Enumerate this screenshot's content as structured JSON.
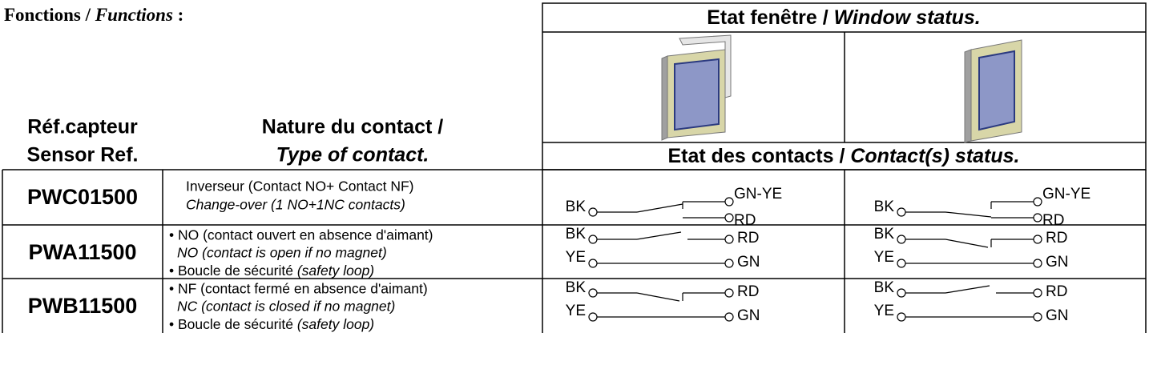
{
  "header": {
    "title": {
      "fr": "Fonctions /",
      "en": "Functions",
      "suffix": ":"
    }
  },
  "columns": {
    "ref": [
      "Réf.capteur",
      "Sensor Ref."
    ],
    "type": [
      "Nature du contact /",
      "Type of contact."
    ],
    "window_status": {
      "fr": "Etat fenêtre /",
      "en": "Window status."
    },
    "contact_status": {
      "fr": "Etat des contacts /",
      "en": "Contact(s) status."
    }
  },
  "rows": [
    {
      "ref": "PWC01500",
      "description": [
        "Inverseur (Contact NO+ Contact NF)",
        "Change-over (1 NO+1NC contacts)"
      ],
      "open": [
        "BK",
        "GN-YE",
        "RD"
      ],
      "closed": [
        "BK",
        "GN-YE",
        "RD"
      ]
    },
    {
      "ref": "PWA11500",
      "description": [
        "• NO (contact ouvert en absence d'aimant)",
        "NO (contact is open if no magnet)",
        "• Boucle de sécurité",
        "(safety loop)"
      ],
      "open": [
        "BK",
        "RD",
        "YE",
        "GN"
      ],
      "closed": [
        "BK",
        "RD",
        "YE",
        "GN"
      ]
    },
    {
      "ref": "PWB11500",
      "description": [
        "• NF (contact fermé en absence d'aimant)",
        "NC (contact is closed if no magnet)",
        "• Boucle de sécurité",
        "(safety loop)"
      ],
      "open": [
        "BK",
        "RD",
        "YE",
        "GN"
      ],
      "closed": [
        "BK",
        "RD",
        "YE",
        "GN"
      ]
    }
  ]
}
